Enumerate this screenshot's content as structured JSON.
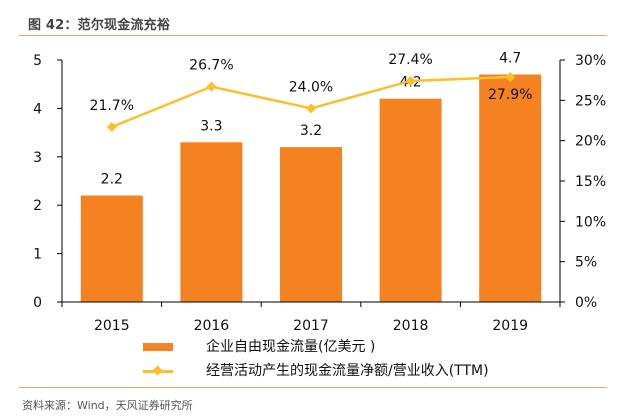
{
  "figure": {
    "title": "图 42：范尔现金流充裕",
    "source": "资料来源：Wind，天风证券研究所"
  },
  "colors": {
    "bar": "#F58220",
    "line": "#FBBF2A",
    "axis": "#000000",
    "rule": "#F4A460"
  },
  "chart_data": {
    "type": "bar+line",
    "title": "范尔现金流充裕",
    "categories": [
      "2015",
      "2016",
      "2017",
      "2018",
      "2019"
    ],
    "series": [
      {
        "name": "企业自由现金流量(亿美元 )",
        "type": "bar",
        "axis": "left",
        "values": [
          2.2,
          3.3,
          3.2,
          4.2,
          4.7
        ],
        "labels": [
          "2.2",
          "3.3",
          "3.2",
          "4.2",
          "4.7"
        ]
      },
      {
        "name": "经营活动产生的现金流量净额/营业收入(TTM)",
        "type": "line",
        "axis": "right",
        "marker": "diamond",
        "values": [
          21.7,
          26.7,
          24.0,
          27.4,
          27.9
        ],
        "labels": [
          "21.7%",
          "26.7%",
          "24.0%",
          "27.4%",
          "27.9%"
        ]
      }
    ],
    "left_axis": {
      "ylim": [
        0,
        5
      ],
      "ticks": [
        0,
        1,
        2,
        3,
        4,
        5
      ],
      "tick_labels": [
        "0",
        "1",
        "2",
        "3",
        "4",
        "5"
      ]
    },
    "right_axis": {
      "ylim": [
        0,
        30
      ],
      "ticks": [
        0,
        5,
        10,
        15,
        20,
        25,
        30
      ],
      "tick_labels": [
        "0%",
        "5%",
        "10%",
        "15%",
        "20%",
        "25%",
        "30%"
      ]
    },
    "xlabel": "",
    "ylabel": "",
    "grid": false,
    "legend_position": "bottom"
  }
}
